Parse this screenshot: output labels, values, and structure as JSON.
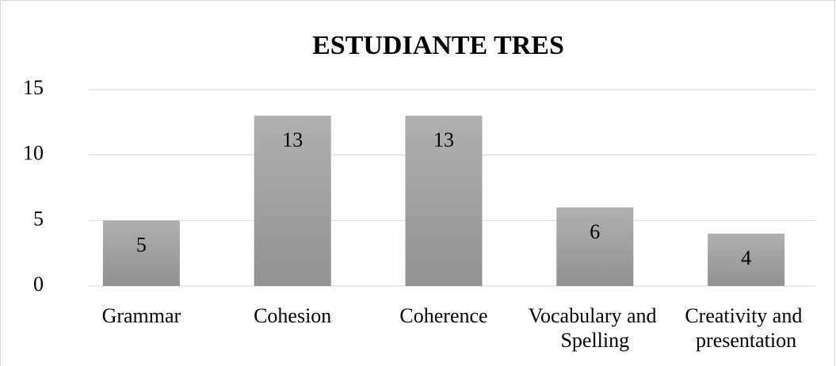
{
  "chart_data": {
    "type": "bar",
    "title": "ESTUDIANTE TRES",
    "categories": [
      "Grammar",
      "Cohesion",
      "Coherence",
      "Vocabulary and Spelling",
      "Creativity and presentation"
    ],
    "values": [
      5,
      13,
      13,
      6,
      4
    ],
    "color": "#a5a5a5",
    "ylim": [
      0,
      15
    ],
    "yticks": [
      0,
      5,
      10,
      15
    ],
    "grid": true
  }
}
